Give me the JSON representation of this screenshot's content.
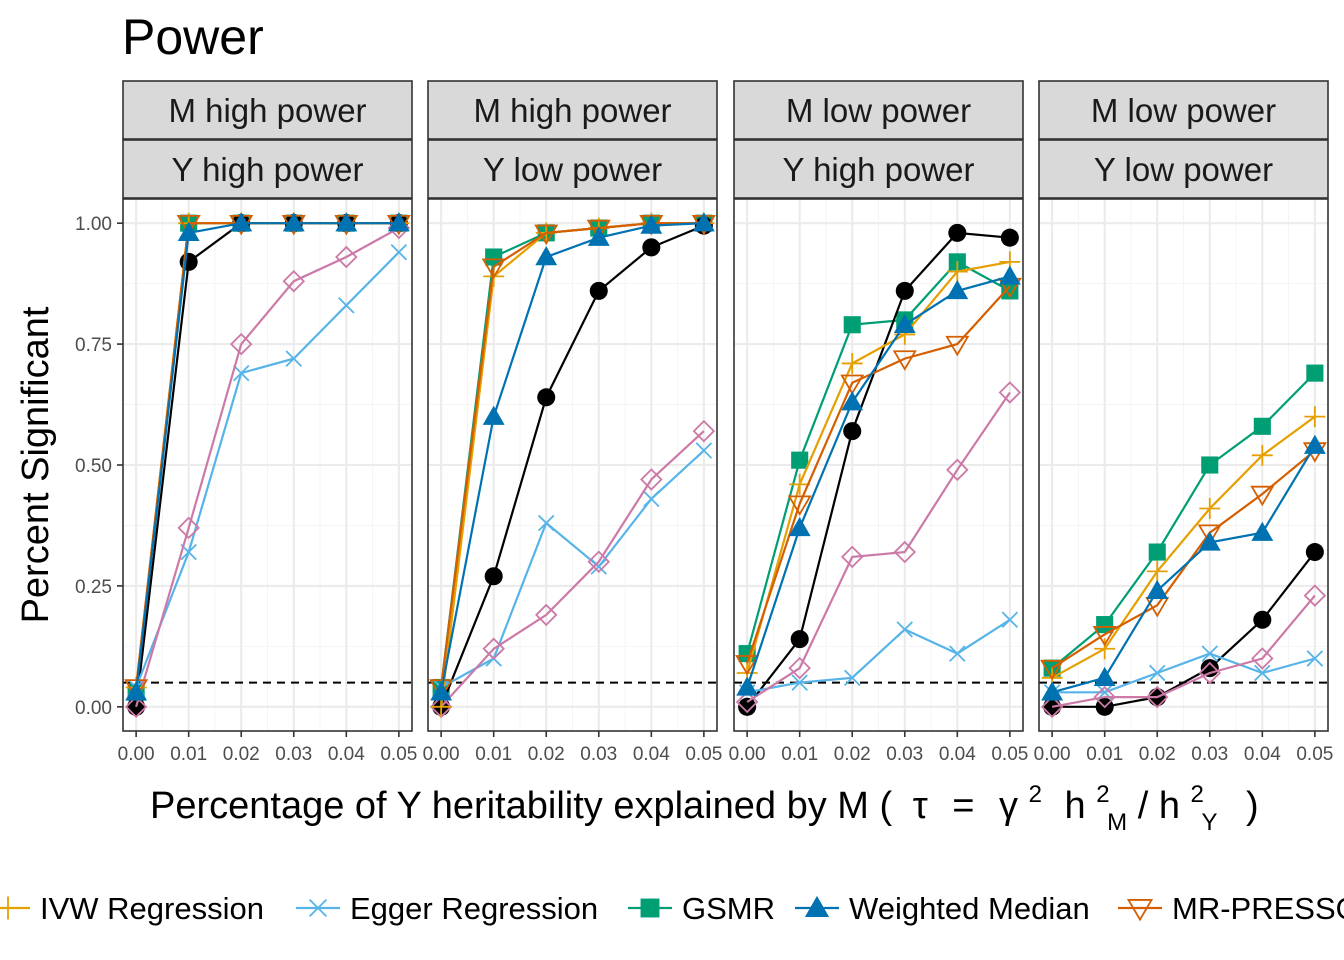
{
  "chart_data": {
    "type": "line",
    "title": "Power",
    "ylabel": "Percent Significant",
    "xlabel": "Percentage of Y heritability explained by M (",
    "xlabel_formula": {
      "tau": "τ",
      "eq": "=",
      "gamma": "γ",
      "sup2": "2",
      "h": "h",
      "sub_m": "M",
      "slash": "/",
      "sub_y": "Y",
      "close": ")"
    },
    "x": [
      0.0,
      0.01,
      0.02,
      0.03,
      0.04,
      0.05
    ],
    "x_tick_labels": [
      "0.00",
      "0.01",
      "0.02",
      "0.03",
      "0.04",
      "0.05"
    ],
    "y_ticks": [
      0.0,
      0.25,
      0.5,
      0.75,
      1.0
    ],
    "y_tick_labels": [
      "0.00",
      "0.25",
      "0.50",
      "0.75",
      "1.00"
    ],
    "ylim": [
      -0.05,
      1.05
    ],
    "xlim": [
      -0.0025,
      0.0525
    ],
    "reference_line": {
      "y": 0.05,
      "style": "dashed",
      "color": "#000000"
    },
    "grid": true,
    "legend_position": "bottom",
    "series_styles": [
      {
        "key": "ivw",
        "name": "IVW Regression",
        "color": "#E69F00",
        "marker": "plus"
      },
      {
        "key": "egger",
        "name": "Egger Regression",
        "color": "#56B4E9",
        "marker": "cross"
      },
      {
        "key": "gsmr",
        "name": "GSMR",
        "color": "#009E73",
        "marker": "square"
      },
      {
        "key": "wm",
        "name": "Weighted Median",
        "color": "#0072B2",
        "marker": "triangle"
      },
      {
        "key": "press",
        "name": "MR-PRESSO",
        "color": "#D55E00",
        "marker": "triangle-down-open"
      },
      {
        "key": "black",
        "name": "",
        "color": "#000000",
        "marker": "circle"
      },
      {
        "key": "pink",
        "name": "",
        "color": "#CC79A7",
        "marker": "diamond-open"
      }
    ],
    "facets": [
      {
        "strip_top": "M high power",
        "strip_bottom": "Y high power",
        "series": {
          "gsmr": [
            0.03,
            1.0,
            1.0,
            1.0,
            1.0,
            1.0
          ],
          "black": [
            0.0,
            0.92,
            1.0,
            1.0,
            1.0,
            1.0
          ],
          "egger": [
            0.04,
            0.32,
            0.69,
            0.72,
            0.83,
            0.94
          ],
          "pink": [
            0.0,
            0.37,
            0.75,
            0.88,
            0.93,
            0.99
          ],
          "ivw": [
            0.04,
            1.0,
            1.0,
            1.0,
            1.0,
            1.0
          ],
          "press": [
            0.04,
            1.0,
            1.0,
            1.0,
            1.0,
            1.0
          ],
          "wm": [
            0.03,
            0.98,
            1.0,
            1.0,
            1.0,
            1.0
          ]
        }
      },
      {
        "strip_top": "M high power",
        "strip_bottom": "Y low power",
        "series": {
          "gsmr": [
            0.04,
            0.93,
            0.98,
            0.99,
            1.0,
            1.0
          ],
          "black": [
            0.0,
            0.27,
            0.64,
            0.86,
            0.95,
            0.995
          ],
          "egger": [
            0.04,
            0.1,
            0.38,
            0.29,
            0.43,
            0.53
          ],
          "pink": [
            0.0,
            0.12,
            0.19,
            0.3,
            0.47,
            0.57
          ],
          "ivw": [
            0.0,
            0.89,
            0.98,
            0.99,
            1.0,
            1.0
          ],
          "press": [
            0.04,
            0.91,
            0.98,
            0.99,
            1.0,
            1.0
          ],
          "wm": [
            0.03,
            0.6,
            0.93,
            0.97,
            0.995,
            1.0
          ]
        }
      },
      {
        "strip_top": "M low power",
        "strip_bottom": "Y high power",
        "series": {
          "gsmr": [
            0.11,
            0.51,
            0.79,
            0.8,
            0.92,
            0.86
          ],
          "black": [
            0.0,
            0.14,
            0.57,
            0.86,
            0.98,
            0.97
          ],
          "egger": [
            0.03,
            0.05,
            0.06,
            0.16,
            0.11,
            0.18
          ],
          "pink": [
            0.01,
            0.08,
            0.31,
            0.32,
            0.49,
            0.65
          ],
          "ivw": [
            0.07,
            0.46,
            0.71,
            0.77,
            0.9,
            0.92
          ],
          "press": [
            0.09,
            0.42,
            0.67,
            0.72,
            0.75,
            0.87
          ],
          "wm": [
            0.04,
            0.37,
            0.63,
            0.79,
            0.86,
            0.89
          ]
        }
      },
      {
        "strip_top": "M low power",
        "strip_bottom": "Y low power",
        "series": {
          "gsmr": [
            0.08,
            0.17,
            0.32,
            0.5,
            0.58,
            0.69
          ],
          "black": [
            0.0,
            0.0,
            0.02,
            0.08,
            0.18,
            0.32
          ],
          "egger": [
            0.03,
            0.03,
            0.07,
            0.11,
            0.07,
            0.1
          ],
          "pink": [
            0.0,
            0.02,
            0.02,
            0.07,
            0.1,
            0.23
          ],
          "ivw": [
            0.06,
            0.12,
            0.28,
            0.41,
            0.52,
            0.6
          ],
          "press": [
            0.08,
            0.15,
            0.21,
            0.36,
            0.44,
            0.53
          ],
          "wm": [
            0.03,
            0.06,
            0.24,
            0.34,
            0.36,
            0.54
          ]
        }
      }
    ],
    "legend": [
      {
        "key": "ivw",
        "label": "IVW Regression"
      },
      {
        "key": "egger",
        "label": "Egger Regression"
      },
      {
        "key": "gsmr",
        "label": "GSMR"
      },
      {
        "key": "wm",
        "label": "Weighted Median"
      },
      {
        "key": "press",
        "label": "MR-PRESSO"
      }
    ]
  }
}
